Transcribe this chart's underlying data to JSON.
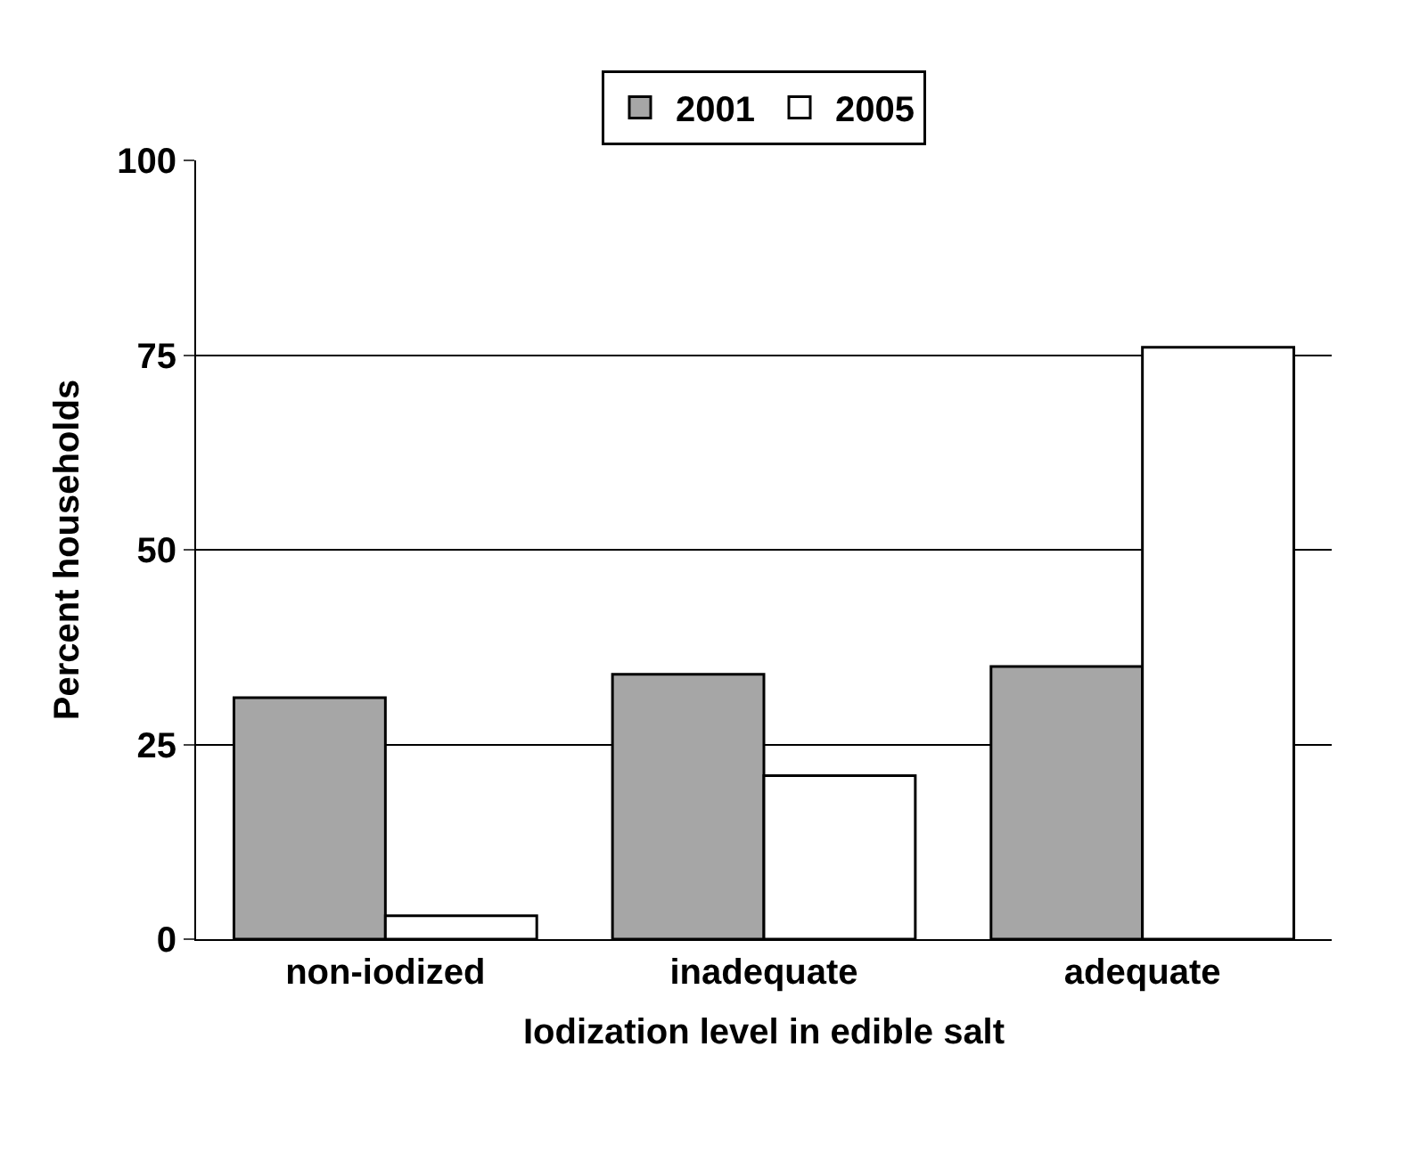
{
  "chart_data": {
    "type": "bar",
    "xlabel": "Iodization level in edible salt",
    "ylabel": "Percent households",
    "categories": [
      "non-iodized",
      "inadequate",
      "adequate"
    ],
    "series": [
      {
        "name": "2001",
        "color": "#a6a6a6",
        "values": [
          31,
          34,
          35
        ]
      },
      {
        "name": "2005",
        "color": "#ffffff",
        "values": [
          3,
          21,
          76
        ]
      }
    ],
    "ylim": [
      0,
      100
    ],
    "yticks": [
      0,
      25,
      50,
      75,
      100
    ],
    "grid": "y",
    "legend": "top"
  }
}
